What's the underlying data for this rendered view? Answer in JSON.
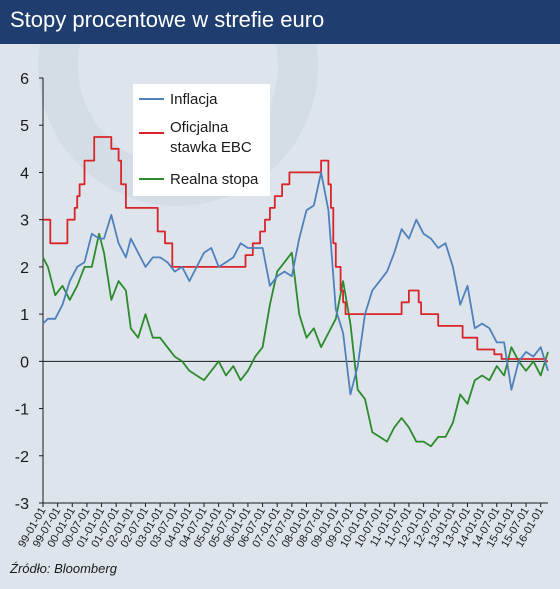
{
  "header": {
    "title": "Stopy procentowe w strefie euro"
  },
  "source": "Źródło: Bloomberg",
  "chart_data": {
    "type": "line",
    "title": "Stopy procentowe w strefie euro",
    "xlabel": "",
    "ylabel": "",
    "ylim": [
      -3,
      6
    ],
    "yticks": [
      6,
      5,
      4,
      3,
      2,
      1,
      0,
      -1,
      -2,
      -3
    ],
    "grid": false,
    "legend_position": "top-center",
    "x_tick_labels": [
      "99-01-01",
      "99-07-01",
      "00-01-01",
      "00-07-01",
      "01-01-01",
      "01-07-01",
      "02-01-01",
      "02-07-01",
      "03-01-01",
      "03-07-01",
      "04-01-01",
      "04-07-01",
      "05-01-01",
      "05-07-01",
      "06-01-01",
      "06-07-01",
      "07-01-01",
      "07-07-01",
      "08-01-01",
      "08-07-01",
      "09-01-01",
      "09-07-01",
      "10-01-01",
      "10-07-01",
      "11-01-01",
      "11-07-01",
      "12-01-01",
      "12-07-01",
      "13-01-01",
      "13-07-01",
      "14-01-01",
      "14-07-01",
      "15-01-01",
      "15-07-01",
      "16-01-01"
    ],
    "x_start": "1999-01",
    "x_end": "2016-04",
    "series": [
      {
        "name": "Inflacja",
        "color": "#4f81bd",
        "x": [
          "1999-01",
          "1999-03",
          "1999-06",
          "1999-09",
          "1999-12",
          "2000-03",
          "2000-06",
          "2000-09",
          "2000-12",
          "2001-02",
          "2001-05",
          "2001-08",
          "2001-11",
          "2002-01",
          "2002-04",
          "2002-07",
          "2002-10",
          "2003-01",
          "2003-04",
          "2003-07",
          "2003-10",
          "2004-01",
          "2004-04",
          "2004-07",
          "2004-10",
          "2005-01",
          "2005-04",
          "2005-07",
          "2005-10",
          "2006-01",
          "2006-04",
          "2006-07",
          "2006-10",
          "2007-01",
          "2007-04",
          "2007-07",
          "2007-10",
          "2008-01",
          "2008-04",
          "2008-07",
          "2008-10",
          "2009-01",
          "2009-04",
          "2009-07",
          "2009-10",
          "2010-01",
          "2010-04",
          "2010-07",
          "2010-10",
          "2011-01",
          "2011-04",
          "2011-07",
          "2011-10",
          "2012-01",
          "2012-04",
          "2012-07",
          "2012-10",
          "2013-01",
          "2013-04",
          "2013-07",
          "2013-10",
          "2014-01",
          "2014-04",
          "2014-07",
          "2014-10",
          "2015-01",
          "2015-04",
          "2015-07",
          "2015-10",
          "2016-01",
          "2016-04"
        ],
        "values": [
          0.8,
          0.9,
          0.9,
          1.2,
          1.7,
          2.0,
          2.1,
          2.7,
          2.6,
          2.6,
          3.1,
          2.5,
          2.2,
          2.6,
          2.3,
          2.0,
          2.2,
          2.2,
          2.1,
          1.9,
          2.0,
          1.7,
          2.0,
          2.3,
          2.4,
          2.0,
          2.1,
          2.2,
          2.5,
          2.4,
          2.4,
          2.4,
          1.6,
          1.8,
          1.9,
          1.8,
          2.6,
          3.2,
          3.3,
          4.0,
          3.2,
          1.1,
          0.6,
          -0.7,
          -0.1,
          1.0,
          1.5,
          1.7,
          1.9,
          2.3,
          2.8,
          2.6,
          3.0,
          2.7,
          2.6,
          2.4,
          2.5,
          2.0,
          1.2,
          1.6,
          0.7,
          0.8,
          0.7,
          0.4,
          0.4,
          -0.6,
          0.0,
          0.2,
          0.1,
          0.3,
          -0.2
        ]
      },
      {
        "name": "Oficjalna stawka EBC",
        "color": "#d9242a",
        "x": [
          "1999-01",
          "1999-04",
          "1999-11",
          "2000-02",
          "2000-03",
          "2000-04",
          "2000-06",
          "2000-10",
          "2001-05",
          "2001-08",
          "2001-09",
          "2001-11",
          "2002-12",
          "2003-03",
          "2003-06",
          "2005-12",
          "2006-03",
          "2006-06",
          "2006-08",
          "2006-10",
          "2006-12",
          "2007-03",
          "2007-06",
          "2008-07",
          "2008-10",
          "2008-11",
          "2008-12",
          "2009-01",
          "2009-03",
          "2009-04",
          "2009-05",
          "2011-04",
          "2011-07",
          "2011-11",
          "2011-12",
          "2012-07",
          "2013-05",
          "2013-11",
          "2014-06",
          "2014-09",
          "2016-03"
        ],
        "values": [
          3.0,
          2.5,
          3.0,
          3.25,
          3.5,
          3.75,
          4.25,
          4.75,
          4.5,
          4.25,
          3.75,
          3.25,
          2.75,
          2.5,
          2.0,
          2.25,
          2.5,
          2.75,
          3.0,
          3.25,
          3.5,
          3.75,
          4.0,
          4.25,
          3.75,
          3.25,
          2.5,
          2.0,
          1.5,
          1.25,
          1.0,
          1.25,
          1.5,
          1.25,
          1.0,
          0.75,
          0.5,
          0.25,
          0.15,
          0.05,
          0.0
        ]
      },
      {
        "name": "Realna stopa",
        "color": "#2d8a2d",
        "x": [
          "1999-01",
          "1999-03",
          "1999-06",
          "1999-09",
          "1999-12",
          "2000-03",
          "2000-06",
          "2000-09",
          "2000-12",
          "2001-02",
          "2001-05",
          "2001-08",
          "2001-11",
          "2002-01",
          "2002-04",
          "2002-07",
          "2002-10",
          "2003-01",
          "2003-04",
          "2003-07",
          "2003-10",
          "2004-01",
          "2004-04",
          "2004-07",
          "2004-10",
          "2005-01",
          "2005-04",
          "2005-07",
          "2005-10",
          "2006-01",
          "2006-04",
          "2006-07",
          "2006-10",
          "2007-01",
          "2007-04",
          "2007-07",
          "2007-10",
          "2008-01",
          "2008-04",
          "2008-07",
          "2008-10",
          "2009-01",
          "2009-04",
          "2009-07",
          "2009-10",
          "2010-01",
          "2010-04",
          "2010-07",
          "2010-10",
          "2011-01",
          "2011-04",
          "2011-07",
          "2011-10",
          "2012-01",
          "2012-04",
          "2012-07",
          "2012-10",
          "2013-01",
          "2013-04",
          "2013-07",
          "2013-10",
          "2014-01",
          "2014-04",
          "2014-07",
          "2014-10",
          "2015-01",
          "2015-04",
          "2015-07",
          "2015-10",
          "2016-01",
          "2016-04"
        ],
        "values": [
          2.2,
          2.0,
          1.4,
          1.6,
          1.3,
          1.6,
          2.0,
          2.0,
          2.7,
          2.3,
          1.3,
          1.7,
          1.5,
          0.7,
          0.5,
          1.0,
          0.5,
          0.5,
          0.3,
          0.1,
          0.0,
          -0.2,
          -0.3,
          -0.4,
          -0.2,
          0.0,
          -0.3,
          -0.1,
          -0.4,
          -0.2,
          0.1,
          0.3,
          1.2,
          1.9,
          2.1,
          2.3,
          1.0,
          0.5,
          0.7,
          0.3,
          0.6,
          0.9,
          1.7,
          0.8,
          -0.6,
          -0.8,
          -1.5,
          -1.6,
          -1.7,
          -1.4,
          -1.2,
          -1.4,
          -1.7,
          -1.7,
          -1.8,
          -1.6,
          -1.6,
          -1.3,
          -0.7,
          -0.9,
          -0.4,
          -0.3,
          -0.4,
          -0.1,
          -0.3,
          0.3,
          0.0,
          -0.2,
          0.0,
          -0.3,
          0.2
        ]
      }
    ]
  }
}
